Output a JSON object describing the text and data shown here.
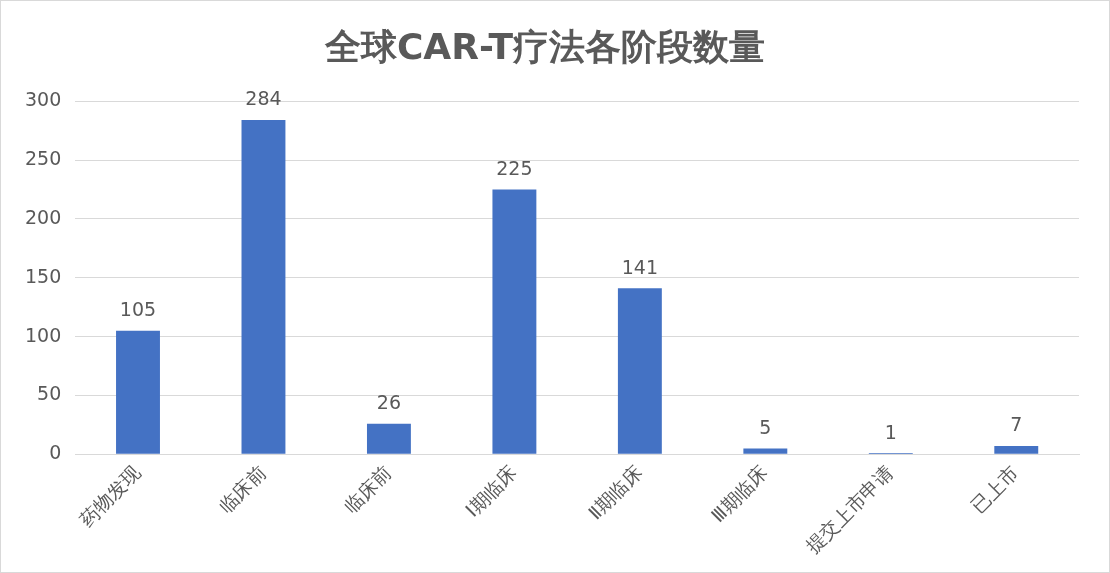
{
  "chart_data": {
    "type": "bar",
    "title": "全球CAR-T疗法各阶段数量",
    "categories": [
      "药物发现",
      "临床前",
      "临床前",
      "Ⅰ期临床",
      "Ⅱ期临床",
      "Ⅲ期临床",
      "提交上市申请",
      "已上市"
    ],
    "values": [
      105,
      284,
      26,
      225,
      141,
      5,
      1,
      7
    ],
    "color": "#4472c4",
    "ylim": [
      0,
      300
    ],
    "yticks": [
      0,
      50,
      100,
      150,
      200,
      250,
      300
    ],
    "grid": "y",
    "legend": false,
    "data_labels": true
  }
}
